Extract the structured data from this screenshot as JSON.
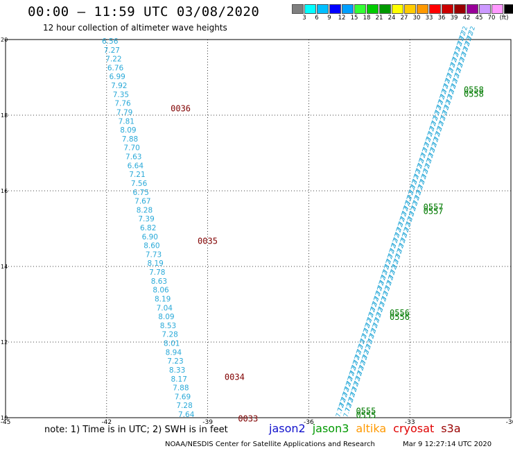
{
  "header": {
    "title": "00:00 – 11:59 UTC 03/08/2020",
    "subtitle": "12 hour collection of altimeter wave heights"
  },
  "colorbar": {
    "colors": [
      "#7f7f7f",
      "#00ffff",
      "#00bfff",
      "#0000ff",
      "#00a0ff",
      "#33ff33",
      "#00cc00",
      "#009900",
      "#ffff00",
      "#ffcc00",
      "#ff9900",
      "#ff0000",
      "#cc0000",
      "#990000",
      "#990099",
      "#cc99ff",
      "#ff99ff",
      "#000000"
    ],
    "labels": [
      "3",
      "6",
      "9",
      "12",
      "15",
      "18",
      "21",
      "24",
      "27",
      "30",
      "33",
      "36",
      "39",
      "42",
      "45",
      "70",
      "(ft)"
    ]
  },
  "map": {
    "lon_ticks": [
      "-45",
      "-42",
      "-39",
      "-36",
      "-33",
      "-30"
    ],
    "lat_ticks": [
      "10",
      "12",
      "14",
      "16",
      "18",
      "20"
    ],
    "jason2_track": {
      "color": "#29a9d8",
      "values": [
        "6.56",
        "7.27",
        "7.22",
        "6.76",
        "6.99",
        "7.92",
        "7.35",
        "7.76",
        "7.79",
        "7.81",
        "8.09",
        "7.88",
        "7.70",
        "7.63",
        "6.64",
        "7.21",
        "7.56",
        "6.75",
        "7.67",
        "8.28",
        "7.39",
        "6.82",
        "6.90",
        "8.60",
        "7.73",
        "8.19",
        "7.78",
        "8.63",
        "8.06",
        "8.19",
        "7.04",
        "8.09",
        "8.53",
        "7.28",
        "8.01",
        "8.94",
        "7.23",
        "8.33",
        "8.17",
        "7.88",
        "7.69",
        "7.28",
        "7.64"
      ]
    },
    "time_labels_west": [
      {
        "label": "0036",
        "lat": 18.1,
        "lon": -40.1
      },
      {
        "label": "0035",
        "lat": 14.6,
        "lon": -39.3
      },
      {
        "label": "0034",
        "lat": 11.0,
        "lon": -38.5
      },
      {
        "label": "0033",
        "lat": 9.9,
        "lon": -38.1
      }
    ],
    "east_track": {
      "color": "#29a9d8",
      "label_sample": "7.72"
    },
    "time_labels_east": [
      {
        "label": "0558",
        "lat": 18.6,
        "lon": -31.4
      },
      {
        "label": "0557",
        "lat": 15.5,
        "lon": -32.6
      },
      {
        "label": "0556",
        "lat": 12.7,
        "lon": -33.6
      },
      {
        "label": "0555",
        "lat": 10.1,
        "lon": -34.6
      }
    ]
  },
  "footer": {
    "note": "note:  1) Time is in UTC;  2) SWH is in feet",
    "credit": "NOAA/NESDIS Center for Satellite Applications and Research",
    "timestamp": "Mar  9 12:27:14 UTC 2020",
    "satellites": [
      {
        "name": "jason2",
        "color": "#1010cc"
      },
      {
        "name": "jason3",
        "color": "#009900"
      },
      {
        "name": "altika",
        "color": "#ff9900"
      },
      {
        "name": "cryosat",
        "color": "#e00000"
      },
      {
        "name": "s3a",
        "color": "#990000"
      }
    ]
  }
}
